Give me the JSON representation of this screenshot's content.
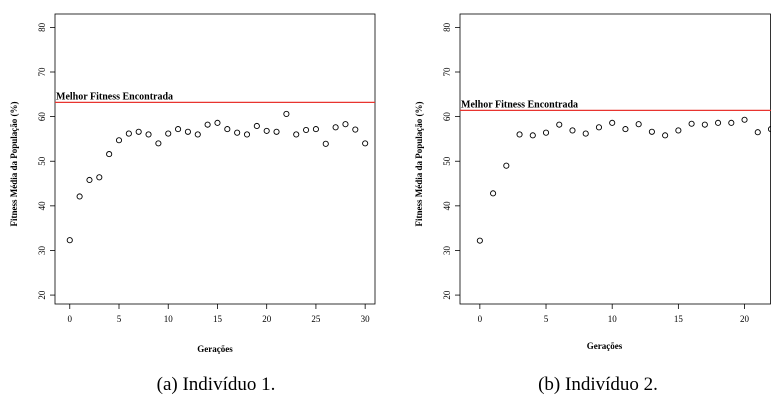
{
  "chart_data": [
    {
      "type": "scatter",
      "caption": "(a) Indivíduo 1.",
      "xlabel": "Gerações",
      "ylabel": "Fitness Média da População (%)",
      "xlim": [
        -1.5,
        31
      ],
      "ylim": [
        18,
        83
      ],
      "xticks": [
        0,
        5,
        10,
        15,
        20,
        25,
        30
      ],
      "yticks": [
        20,
        30,
        40,
        50,
        60,
        70,
        80
      ],
      "grid": false,
      "reference_line": {
        "y": 63.2,
        "label": "Melhor Fitness Encontrada",
        "color": "#e8342f"
      },
      "point_color": "#000000",
      "x": [
        0,
        1,
        2,
        3,
        4,
        5,
        6,
        7,
        8,
        9,
        10,
        11,
        12,
        13,
        14,
        15,
        16,
        17,
        18,
        19,
        20,
        21,
        22,
        23,
        24,
        25,
        26,
        27,
        28,
        29,
        30
      ],
      "y": [
        32.3,
        42.1,
        45.8,
        46.4,
        51.6,
        54.7,
        56.2,
        56.6,
        56.0,
        54.0,
        56.2,
        57.2,
        56.6,
        56.0,
        58.2,
        58.6,
        57.2,
        56.4,
        56.0,
        57.9,
        56.8,
        56.6,
        60.6,
        56.0,
        57.0,
        57.2,
        53.9,
        57.6,
        58.3,
        57.1,
        54.0
      ]
    },
    {
      "type": "scatter",
      "caption": "(b) Indivíduo 2.",
      "xlabel": "Gerações",
      "ylabel": "Fitness Média da População (%)",
      "xlim": [
        -1.5,
        22
      ],
      "ylim": [
        18,
        83
      ],
      "xticks": [
        0,
        5,
        10,
        15,
        20
      ],
      "yticks": [
        20,
        30,
        40,
        50,
        60,
        70,
        80
      ],
      "grid": false,
      "reference_line": {
        "y": 61.4,
        "label": "Melhor Fitness Encontrada",
        "color": "#e8342f"
      },
      "point_color": "#000000",
      "x": [
        0,
        1,
        2,
        3,
        4,
        5,
        6,
        7,
        8,
        9,
        10,
        11,
        12,
        13,
        14,
        15,
        16,
        17,
        18,
        19,
        20,
        21,
        22
      ],
      "y": [
        32.2,
        42.8,
        49.0,
        56.0,
        55.8,
        56.4,
        58.2,
        56.9,
        56.2,
        57.6,
        58.6,
        57.2,
        58.3,
        56.6,
        55.8,
        56.9,
        58.4,
        58.2,
        58.6,
        58.6,
        59.3,
        56.5,
        57.2
      ]
    }
  ]
}
